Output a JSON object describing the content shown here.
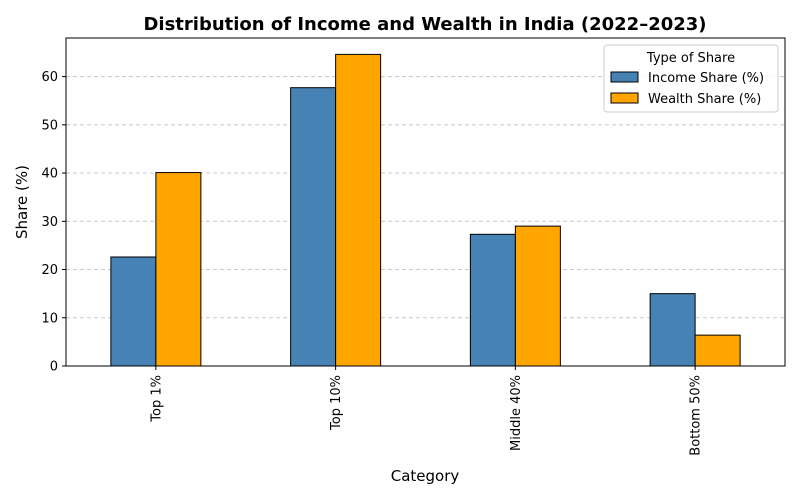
{
  "chart_data": {
    "type": "bar",
    "title": "Distribution of Income and Wealth in India (2022–2023)",
    "xlabel": "Category",
    "ylabel": "Share (%)",
    "categories": [
      "Top 1%",
      "Top 10%",
      "Middle 40%",
      "Bottom 50%"
    ],
    "series": [
      {
        "name": "Income Share (%)",
        "values": [
          22.6,
          57.7,
          27.3,
          15.0
        ],
        "color": "#4682b4"
      },
      {
        "name": "Wealth Share (%)",
        "values": [
          40.1,
          64.6,
          29.0,
          6.4
        ],
        "color": "#ffa500"
      }
    ],
    "ylim": [
      0,
      68
    ],
    "yticks": [
      0,
      10,
      20,
      30,
      40,
      50,
      60
    ],
    "grid": true,
    "legend": {
      "title": "Type of Share",
      "placement": "top-right"
    }
  }
}
